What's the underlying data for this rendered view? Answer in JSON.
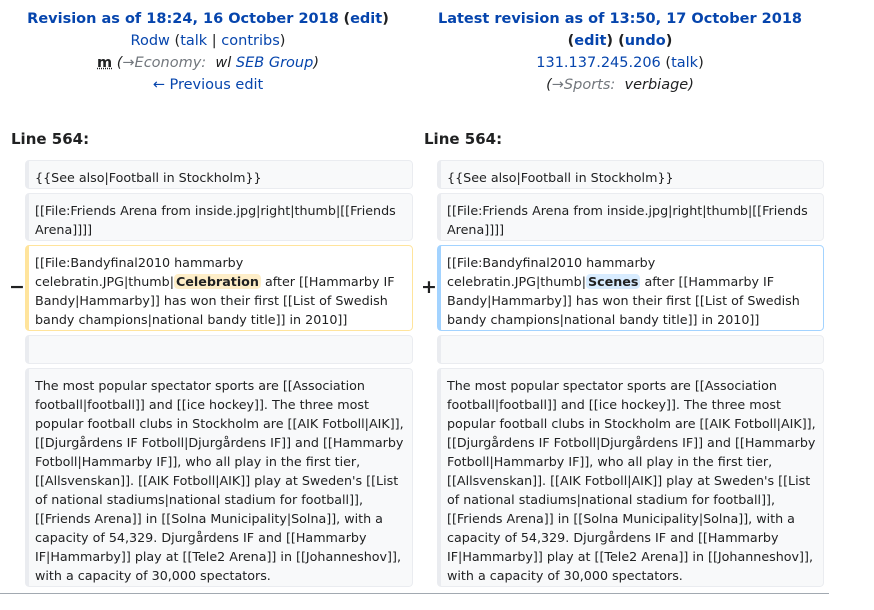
{
  "left": {
    "title": "Revision as of 18:24, 16 October 2018",
    "edit": "edit",
    "user": "Rodw",
    "talk": "talk",
    "contribs": "contribs",
    "minor": "m",
    "section_arrow": "→Economy:",
    "summary_prefix": "wl",
    "summary_link": "SEB Group",
    "prev_edit": "← Previous edit",
    "line_label": "Line 564:"
  },
  "right": {
    "title": "Latest revision as of 13:50, 17 October 2018",
    "edit": "edit",
    "undo": "undo",
    "user": "131.137.245.206",
    "talk": "talk",
    "section_arrow": "→Sports:",
    "summary": "verbiage",
    "line_label": "Line 564:"
  },
  "diff": {
    "see_also": "{{See also|Football in Stockholm}}",
    "file1": "[[File:Friends Arena from inside.jpg|right|thumb|[[Friends Arena]]]]",
    "file2_pre": "[[File:Bandyfinal2010 hammarby celebratin.JPG|thumb|",
    "del_word": "Celebration",
    "add_word": "Scenes",
    "file2_post": " after [[Hammarby IF Bandy|Hammarby]] has won their first [[List of Swedish bandy champions|national bandy title]] in 2010]]",
    "para": "The most popular spectator sports are [[Association football|football]] and [[ice hockey]]. The three most popular football clubs in Stockholm are [[AIK Fotboll|AIK]], [[Djurgårdens IF Fotboll|Djurgårdens IF]] and [[Hammarby Fotboll|Hammarby IF]], who all play in the first tier, [[Allsvenskan]]. [[AIK Fotboll|AIK]] play at Sweden's [[List of national stadiums|national stadium for football]], [[Friends Arena]] in [[Solna Municipality|Solna]], with a capacity of 54,329. Djurgårdens IF and [[Hammarby IF|Hammarby]] play at [[Tele2 Arena]] in [[Johanneshov]], with a capacity of 30,000 spectators.",
    "minus": "−",
    "plus": "+"
  }
}
